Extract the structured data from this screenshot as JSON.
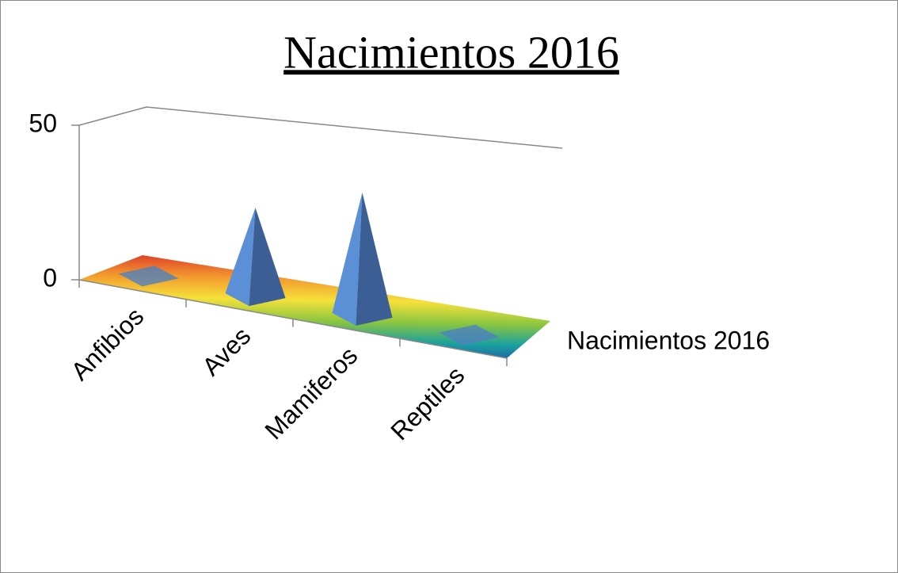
{
  "chart_data": {
    "type": "pyramid3d",
    "title": "Nacimientos 2016",
    "categories": [
      "Anfibios",
      "Aves",
      "Mamiferos",
      "Reptiles"
    ],
    "series": [
      {
        "name": "Nacimientos 2016",
        "color": "#4f81bd",
        "values": [
          0,
          25,
          35,
          0
        ]
      }
    ],
    "ylim": [
      0,
      50
    ],
    "yticks": [
      0,
      50
    ],
    "title_color": "#948a54",
    "legend": "right"
  }
}
